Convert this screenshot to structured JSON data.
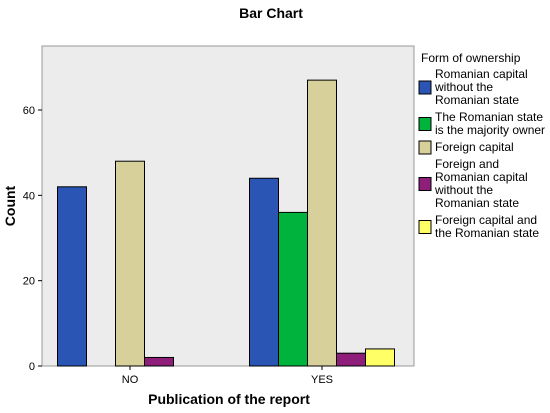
{
  "chart_data": {
    "type": "bar",
    "title": "Bar Chart",
    "xlabel": "Publication of the report",
    "ylabel": "Count",
    "categories": [
      "NO",
      "YES"
    ],
    "ylim": [
      0,
      75
    ],
    "yticks": [
      0,
      20,
      40,
      60
    ],
    "grid": false,
    "legend_title": "Form of ownership",
    "legend_position": "right",
    "series": [
      {
        "name": "Romanian capital without the Romanian state",
        "legend_lines": [
          "Romanian capital",
          "without the",
          "Romanian state"
        ],
        "color": "#2a55b5",
        "values": [
          42,
          44
        ]
      },
      {
        "name": "The Romanian state is the majority owner",
        "legend_lines": [
          "The Romanian state",
          "is the majority owner"
        ],
        "color": "#00b33c",
        "values": [
          0,
          36
        ]
      },
      {
        "name": "Foreign capital",
        "legend_lines": [
          "Foreign capital"
        ],
        "color": "#d8d09a",
        "values": [
          48,
          67
        ]
      },
      {
        "name": "Foreign and Romanian capital without the Romanian state",
        "legend_lines": [
          "Foreign and",
          "Romanian capital",
          "without the",
          "Romanian state"
        ],
        "color": "#8e1e7a",
        "values": [
          2,
          3
        ]
      },
      {
        "name": "Foreign capital and the Romanian state",
        "legend_lines": [
          "Foreign capital and",
          "the Romanian state"
        ],
        "color": "#ffff66",
        "values": [
          0,
          4
        ]
      }
    ]
  }
}
